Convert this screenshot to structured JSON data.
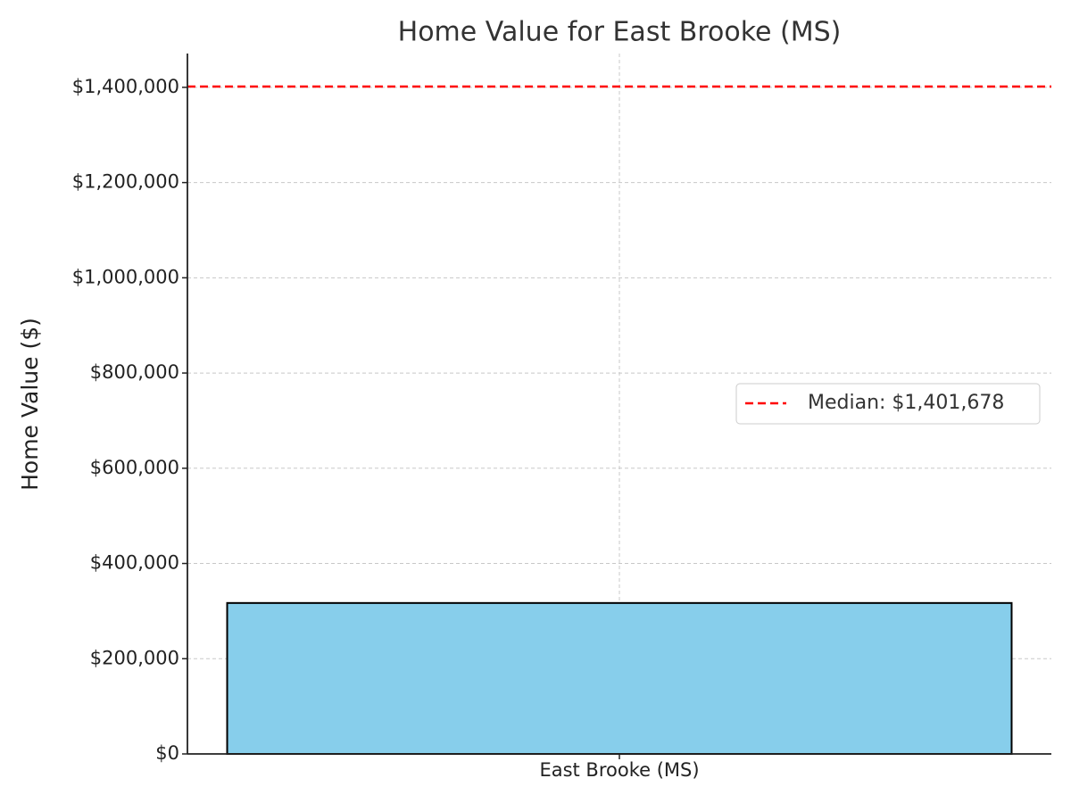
{
  "chart_data": {
    "type": "bar",
    "title": "Home Value for East Brooke (MS)",
    "y_label": "Home Value ($)",
    "categories": [
      "East Brooke (MS)"
    ],
    "values": [
      317000
    ],
    "color": "#87ceeb",
    "median": {
      "value": 1401678,
      "label": "Median: $1,401,678",
      "color": "#ff0000"
    },
    "ylim": [
      0,
      1471000
    ],
    "yticks": [
      {
        "value": 0,
        "label": "$0"
      },
      {
        "value": 200000,
        "label": "$200,000"
      },
      {
        "value": 400000,
        "label": "$400,000"
      },
      {
        "value": 600000,
        "label": "$600,000"
      },
      {
        "value": 800000,
        "label": "$800,000"
      },
      {
        "value": 1000000,
        "label": "$1,000,000"
      },
      {
        "value": 1200000,
        "label": "$1,200,000"
      },
      {
        "value": 1400000,
        "label": "$1,400,000"
      }
    ],
    "grid": true,
    "legend": "center right"
  }
}
